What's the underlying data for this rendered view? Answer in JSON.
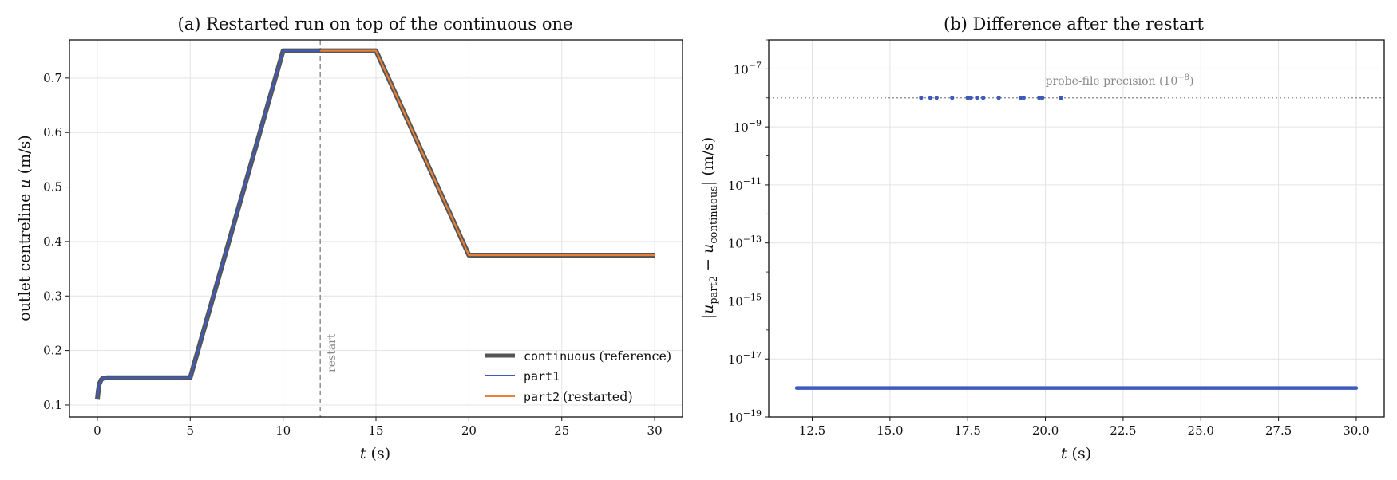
{
  "chart_data": [
    {
      "type": "line",
      "title": "(a) Restarted run on top of the continuous one",
      "xlabel_italic": "t",
      "xlabel_unit": "(s)",
      "ylabel_text": "outlet centreline",
      "ylabel_italic": "u",
      "ylabel_unit": "(m/s)",
      "xlim": [
        -1.5,
        31.5
      ],
      "ylim": [
        0.078,
        0.77
      ],
      "xticks": [
        0,
        5,
        10,
        15,
        20,
        25,
        30
      ],
      "yticks": [
        0.1,
        0.2,
        0.3,
        0.4,
        0.5,
        0.6,
        0.7
      ],
      "grid": true,
      "restart_t": 12,
      "restart_label": "restart",
      "legend_position": "lower-right",
      "series": [
        {
          "name_code": "continuous",
          "name_suffix": "(reference)",
          "color": "#555555",
          "x": [
            0,
            0.05,
            0.1,
            0.2,
            0.3,
            0.5,
            5,
            10,
            15,
            20,
            30
          ],
          "y": [
            0.11,
            0.125,
            0.138,
            0.146,
            0.149,
            0.15,
            0.15,
            0.75,
            0.75,
            0.375,
            0.375
          ]
        },
        {
          "name_code": "part1",
          "name_suffix": "",
          "color": "#3d5bbd",
          "x": [
            0,
            0.05,
            0.1,
            0.2,
            0.3,
            0.5,
            5,
            10,
            12
          ],
          "y": [
            0.11,
            0.125,
            0.138,
            0.146,
            0.149,
            0.15,
            0.15,
            0.75,
            0.75
          ]
        },
        {
          "name_code": "part2",
          "name_suffix": "(restarted)",
          "color": "#e8803a",
          "x": [
            12,
            15,
            20,
            30
          ],
          "y": [
            0.75,
            0.75,
            0.375,
            0.375
          ]
        }
      ]
    },
    {
      "type": "scatter",
      "title": "(b) Difference after the restart",
      "xlabel_italic": "t",
      "xlabel_unit": "(s)",
      "ylabel": "|u_part2 − u_continuous| (m/s)",
      "yscale": "log",
      "xlim": [
        11.1,
        30.9
      ],
      "ylim_exp": [
        -19,
        -6
      ],
      "xticks": [
        12.5,
        15.0,
        17.5,
        20.0,
        22.5,
        25.0,
        27.5,
        30.0
      ],
      "yticks_exp": [
        -7,
        -9,
        -11,
        -13,
        -15,
        -17,
        -19
      ],
      "grid": true,
      "precision_level_exp": -8,
      "precision_label": "probe-file precision (10",
      "precision_label_exp": "−8",
      "floor_exp": -18,
      "floor_range": [
        12.0,
        30.0
      ],
      "color": "#3d5bbd",
      "points_t": [
        16.0,
        16.3,
        16.5,
        17.0,
        17.5,
        17.6,
        17.8,
        18.0,
        18.5,
        19.2,
        19.3,
        19.8,
        19.9,
        20.5
      ]
    }
  ]
}
